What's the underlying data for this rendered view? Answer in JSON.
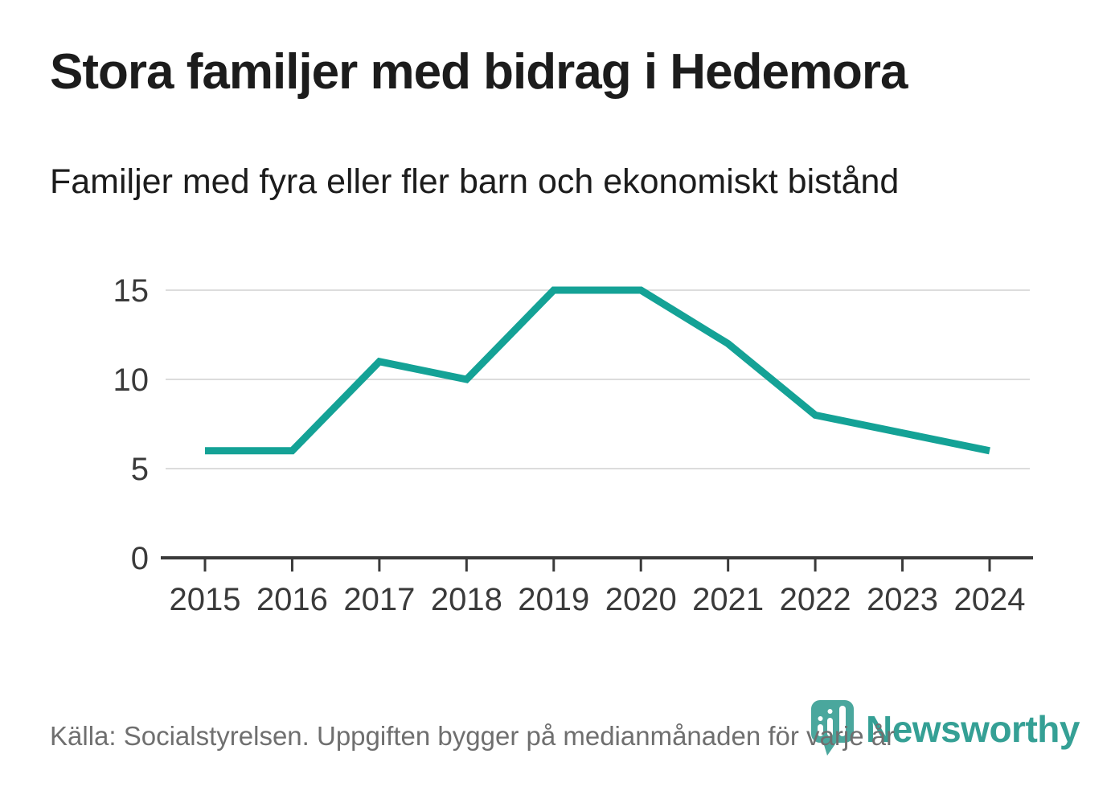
{
  "header": {
    "title": "Stora familjer med bidrag i Hedemora",
    "subtitle": "Familjer med fyra eller fler barn och ekonomiskt bistånd"
  },
  "footer": {
    "source": "Källa: Socialstyrelsen. Uppgiften bygger på medianmånaden för varje år",
    "logo_text": "Newsworthy"
  },
  "colors": {
    "line": "#14A296",
    "grid": "#DCDCDC",
    "axis": "#3A3A3A",
    "tick_label": "#3A3A3A",
    "title": "#1C1C1C",
    "source": "#6F6F6F",
    "logo_text": "#35A095",
    "logo_icon": "#4AA79D",
    "logo_bars": "#FFFFFF"
  },
  "chart_data": {
    "type": "line",
    "x": [
      2015,
      2016,
      2017,
      2018,
      2019,
      2020,
      2021,
      2022,
      2023,
      2024
    ],
    "values": [
      6,
      6,
      11,
      10,
      15,
      15,
      12,
      8,
      7,
      6
    ],
    "series_name": "Familjer med fyra eller fler barn och ekonomiskt bistånd",
    "title": "Stora familjer med bidrag i Hedemora",
    "xlabel": "",
    "ylabel": "",
    "ylim": [
      0,
      15
    ],
    "yticks": [
      0,
      5,
      10,
      15
    ],
    "grid": "horizontal",
    "legend": "none"
  }
}
